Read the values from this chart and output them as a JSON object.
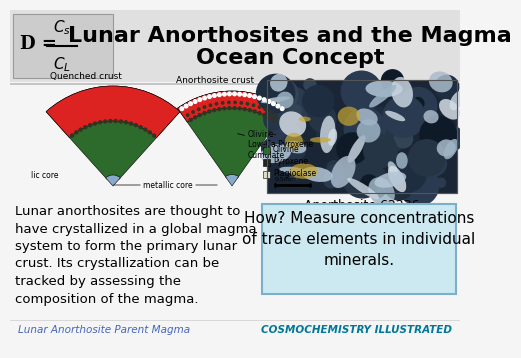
{
  "title_line1": "Lunar Anorthosites and the Magma",
  "title_line2": "Ocean Concept",
  "title_fontsize": 16,
  "title_color": "#000000",
  "background_color": "#f5f5f5",
  "header_bg": "#e0e0e0",
  "body_text": "Lunar anorthosites are thought to\nhave crystallized in a global magma\nsystem to form the primary lunar\ncrust. Its crystallization can be\ntracked by assessing the\ncomposition of the magma.",
  "body_fontsize": 9.5,
  "highlight_text": "How? Measure concentrations\nof trace elements in individual\nminerals.",
  "highlight_fontsize": 11,
  "highlight_bg": "#cce8f0",
  "highlight_border": "#7ab0c8",
  "caption_photo": "Anorthosite 62236",
  "caption_photo_fontsize": 9,
  "footer_left": "Lunar Anorthosite Parent Magma",
  "footer_right": "COSMOCHEMISTRY ILLUSTRATED",
  "footer_color_left": "#4466bb",
  "footer_color_right": "#007799",
  "footer_fontsize": 7.5,
  "separator_color": "#bbbbbb",
  "diagram_colors": {
    "red_crust": "#dd2222",
    "green_body": "#2d6b2d",
    "blue_core": "#88aacc",
    "dark_dots": "#333322",
    "white_dots": "#ffffff"
  },
  "legend_items": [
    {
      "label": "Olivine",
      "color": "#2d6b2d"
    },
    {
      "label": "Pyroxene",
      "color": "#222222"
    },
    {
      "label": "Plagioclase",
      "color": "#ddddcc"
    }
  ],
  "diagram_labels": {
    "quenched_crust": "Quenched crust",
    "anorthosite_crust": "Anorthosite crust",
    "olivine_label": "Olivine-\nLow-Ca Pyroxene\nCumulate",
    "lic_core": "lic core",
    "metallic_core": "metallic core"
  }
}
